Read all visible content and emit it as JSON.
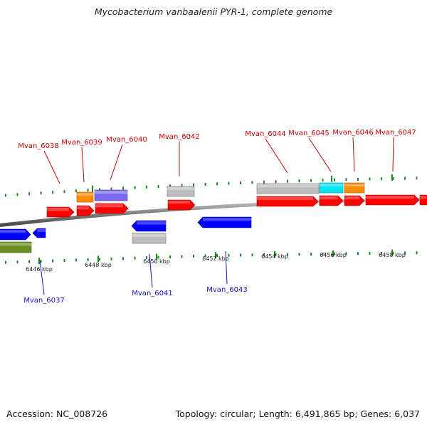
{
  "title": "Mycobacterium vanbaalenii PYR-1, complete genome",
  "accession_text": "Accession: NC_008726",
  "stats_text": "Topology: circular; Length: 6,491,865 bp; Genes: 6,037",
  "colors": {
    "forward": "#ff0000",
    "reverse": "#0000ff",
    "backbone": "#8a8a8a",
    "tick": "#1a8a1a",
    "label_forward": "#cc0000",
    "label_reverse": "#1010cc",
    "rna_gray": "#bdbdbd",
    "orange": "#ff8c00",
    "purple": "#7b68ee",
    "cyan": "#00e5ee",
    "olive": "#6b8e23"
  },
  "axis_ticks": [
    "6446 kbp",
    "6448 kbp",
    "6450 kbp",
    "6452 kbp",
    "6454 kbp",
    "6456 kbp",
    "6458 kbp"
  ],
  "forward_labels": [
    "Mvan_6038",
    "Mvan_6039",
    "Mvan_6040",
    "Mvan_6042",
    "Mvan_6044",
    "Mvan_6045",
    "Mvan_6046",
    "Mvan_6047"
  ],
  "reverse_labels": [
    "Mvan_6037",
    "Mvan_6041",
    "Mvan_6043"
  ]
}
